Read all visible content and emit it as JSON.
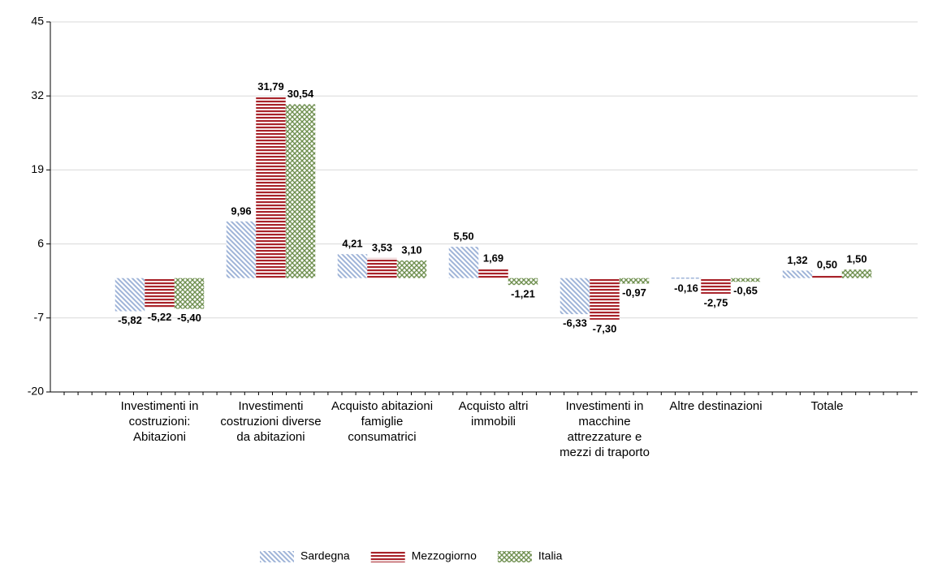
{
  "chart_data": {
    "type": "bar",
    "categories": [
      "Investimenti in costruzioni: Abitazioni",
      "Investimenti costruzioni diverse da abitazioni",
      "Acquisto abitazioni famiglie consumatrici",
      "Acquisto altri immobili",
      "Investimenti in macchine attrezzature e mezzi di traporto",
      "Altre destinazioni",
      "Totale"
    ],
    "series": [
      {
        "name": "Sardegna",
        "color": "#9fb4d8",
        "pattern": "diagonal",
        "values": [
          -5.82,
          9.96,
          4.21,
          5.5,
          -6.33,
          -0.16,
          1.32
        ],
        "value_labels": [
          "-5,82",
          "9,96",
          "4,21",
          "5,50",
          "-6,33",
          "-0,16",
          "1,32"
        ]
      },
      {
        "name": "Mezzogiorno",
        "color": "#a8232a",
        "pattern": "horizontal",
        "values": [
          -5.22,
          31.79,
          3.53,
          1.69,
          -7.3,
          -2.75,
          0.5
        ],
        "value_labels": [
          "-5,22",
          "31,79",
          "3,53",
          "1,69",
          "-7,30",
          "-2,75",
          "0,50"
        ]
      },
      {
        "name": "Italia",
        "color": "#6f8f4f",
        "pattern": "crosshatch",
        "values": [
          -5.4,
          30.54,
          3.1,
          -1.21,
          -0.97,
          -0.65,
          1.5
        ],
        "value_labels": [
          "-5,40",
          "30,54",
          "3,10",
          "-1,21",
          "-0,97",
          "-0,65",
          "1,50"
        ]
      }
    ],
    "ylim": [
      -20,
      45
    ],
    "yticks": [
      -20,
      -7,
      6,
      19,
      32,
      45
    ],
    "grid": true,
    "legend": "bottom"
  }
}
